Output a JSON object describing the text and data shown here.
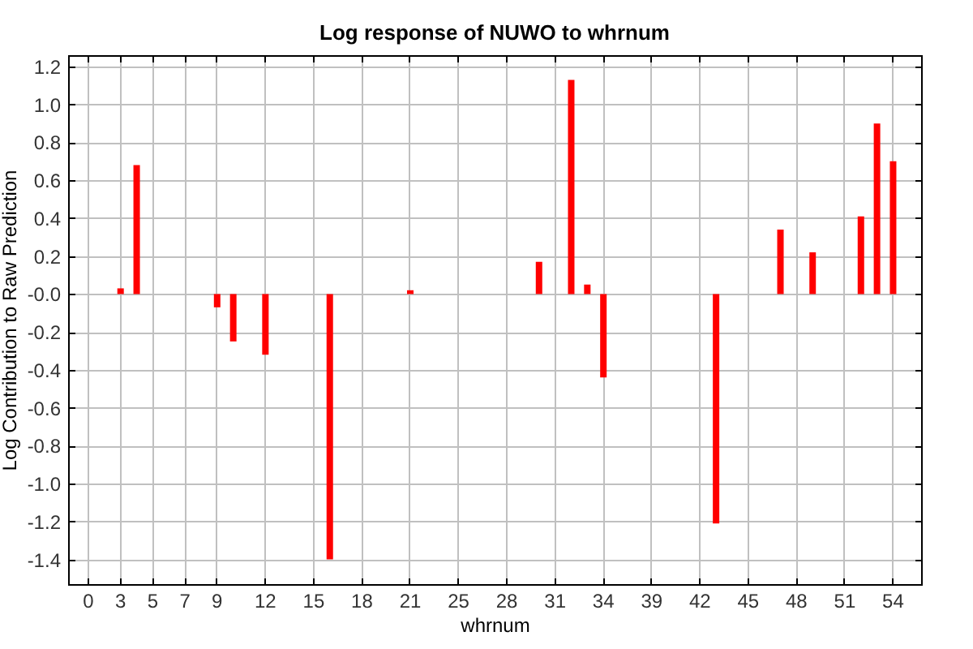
{
  "chart_data": {
    "type": "bar",
    "title": "Log response of NUWO to whrnum",
    "xlabel": "whrnum",
    "ylabel": "Log Contribution to Raw Prediction",
    "categories": [
      "0",
      null,
      "3",
      null,
      "5",
      null,
      "7",
      null,
      "9",
      null,
      null,
      "12",
      null,
      null,
      "15",
      null,
      null,
      "18",
      null,
      null,
      "21",
      null,
      null,
      "25",
      null,
      null,
      "28",
      null,
      null,
      "31",
      null,
      null,
      "34",
      null,
      null,
      "39",
      null,
      null,
      "42",
      null,
      null,
      "45",
      null,
      null,
      "48",
      null,
      null,
      "51",
      null,
      null,
      "54"
    ],
    "values": [
      null,
      null,
      0.03,
      0.68,
      null,
      null,
      null,
      null,
      -0.07,
      -0.25,
      null,
      -0.32,
      null,
      null,
      null,
      -1.4,
      null,
      null,
      null,
      null,
      0.02,
      null,
      null,
      null,
      null,
      null,
      null,
      null,
      0.17,
      null,
      1.13,
      0.05,
      -0.44,
      null,
      null,
      null,
      null,
      null,
      null,
      -1.21,
      null,
      null,
      null,
      0.34,
      null,
      0.22,
      null,
      null,
      0.41,
      0.9,
      0.7
    ],
    "color": "#ff0000",
    "ylim": [
      -1.53,
      1.26
    ],
    "yticks": [
      -1.4,
      -1.2,
      {
        "value": -1,
        "label": "-1.0"
      },
      -0.8,
      -0.6,
      -0.4,
      -0.2,
      {
        "value": 0,
        "label": "-0.0"
      },
      0.2,
      0.4,
      0.6,
      0.8,
      {
        "value": 1,
        "label": "1.0"
      },
      1.2
    ],
    "grid": true
  }
}
